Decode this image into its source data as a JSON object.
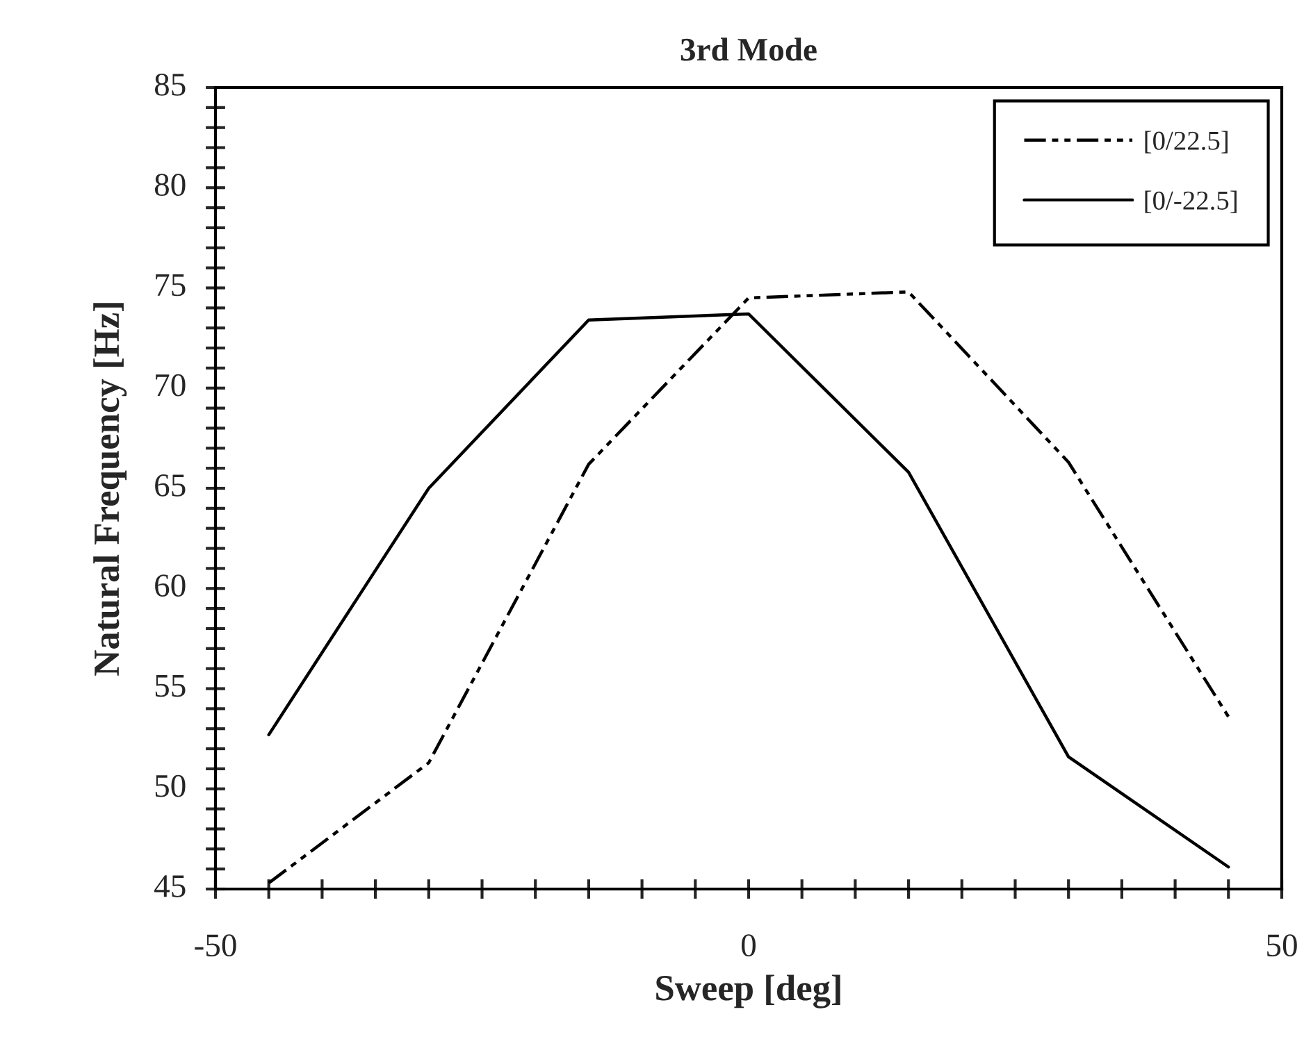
{
  "chart_data": {
    "type": "line",
    "title": "3rd Mode",
    "xlabel": "Sweep [deg]",
    "ylabel": "Natural Frequency [Hz]",
    "x": [
      -45,
      -30,
      -15,
      0,
      15,
      30,
      45
    ],
    "series": [
      {
        "name": "[0/22.5]",
        "color": "#000000",
        "line_style": "dash-dot-dot",
        "values": [
          45.3,
          51.3,
          66.2,
          74.5,
          74.8,
          66.3,
          53.6
        ]
      },
      {
        "name": "[0/-22.5]",
        "color": "#000000",
        "line_style": "solid",
        "values": [
          52.7,
          65.0,
          73.4,
          73.7,
          65.8,
          51.6,
          46.1
        ]
      }
    ],
    "xlim": [
      -50,
      50
    ],
    "xticks": [
      -50,
      {
        "value": -45,
        "label": null
      },
      {
        "value": -40,
        "label": null
      },
      {
        "value": -35,
        "label": null
      },
      {
        "value": -30,
        "label": null
      },
      {
        "value": -25,
        "label": null
      },
      {
        "value": -20,
        "label": null
      },
      {
        "value": -15,
        "label": null
      },
      {
        "value": -10,
        "label": null
      },
      {
        "value": -5,
        "label": null
      },
      0,
      {
        "value": 5,
        "label": null
      },
      {
        "value": 10,
        "label": null
      },
      {
        "value": 15,
        "label": null
      },
      {
        "value": 20,
        "label": null
      },
      {
        "value": 25,
        "label": null
      },
      {
        "value": 30,
        "label": null
      },
      {
        "value": 35,
        "label": null
      },
      {
        "value": 40,
        "label": null
      },
      {
        "value": 45,
        "label": null
      },
      50
    ],
    "ylim": [
      45,
      85
    ],
    "yticks": [
      45,
      {
        "value": 46,
        "label": null
      },
      {
        "value": 47,
        "label": null
      },
      {
        "value": 48,
        "label": null
      },
      {
        "value": 49,
        "label": null
      },
      50,
      {
        "value": 51,
        "label": null
      },
      {
        "value": 52,
        "label": null
      },
      {
        "value": 53,
        "label": null
      },
      {
        "value": 54,
        "label": null
      },
      55,
      {
        "value": 56,
        "label": null
      },
      {
        "value": 57,
        "label": null
      },
      {
        "value": 58,
        "label": null
      },
      {
        "value": 59,
        "label": null
      },
      60,
      {
        "value": 61,
        "label": null
      },
      {
        "value": 62,
        "label": null
      },
      {
        "value": 63,
        "label": null
      },
      {
        "value": 64,
        "label": null
      },
      65,
      {
        "value": 66,
        "label": null
      },
      {
        "value": 67,
        "label": null
      },
      {
        "value": 68,
        "label": null
      },
      {
        "value": 69,
        "label": null
      },
      70,
      {
        "value": 71,
        "label": null
      },
      {
        "value": 72,
        "label": null
      },
      {
        "value": 73,
        "label": null
      },
      {
        "value": 74,
        "label": null
      },
      75,
      {
        "value": 76,
        "label": null
      },
      {
        "value": 77,
        "label": null
      },
      {
        "value": 78,
        "label": null
      },
      {
        "value": 79,
        "label": null
      },
      80,
      {
        "value": 81,
        "label": null
      },
      {
        "value": 82,
        "label": null
      },
      {
        "value": 83,
        "label": null
      },
      {
        "value": 84,
        "label": null
      },
      85
    ],
    "grid": false,
    "legend": "top right",
    "marker": "none"
  }
}
